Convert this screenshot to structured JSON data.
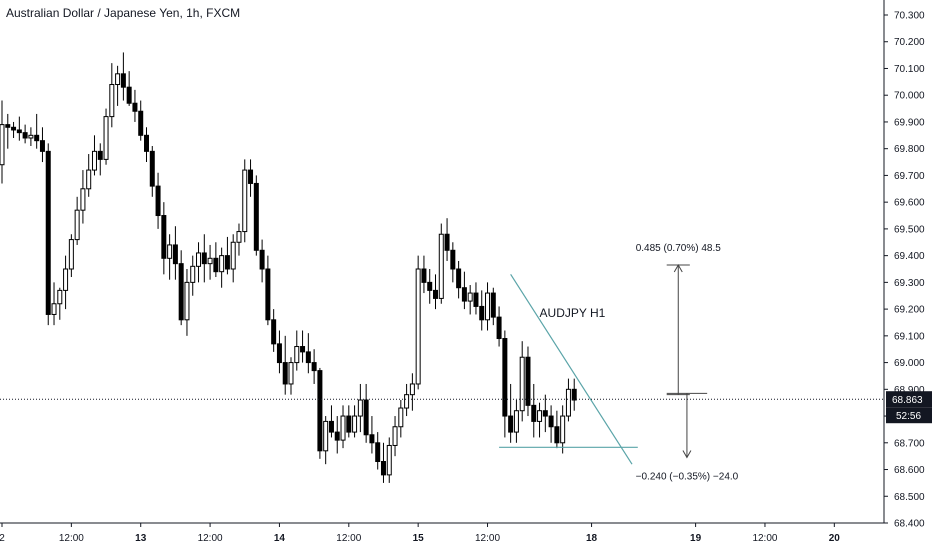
{
  "header": {
    "title": "Australian Dollar / Japanese Yen, 1h, FXCM"
  },
  "chart_data": {
    "type": "candlestick",
    "title": "Australian Dollar / Japanese Yen, 1h, FXCM",
    "ylim": [
      68.4,
      70.35
    ],
    "y_ticks": [
      "70.300",
      "70.200",
      "70.100",
      "70.000",
      "69.900",
      "69.800",
      "69.700",
      "69.600",
      "69.500",
      "69.400",
      "69.300",
      "69.200",
      "69.100",
      "69.000",
      "68.900",
      "68.800",
      "68.700",
      "68.600",
      "68.500",
      "68.400"
    ],
    "x_ticks": [
      {
        "label": "2",
        "i": 0
      },
      {
        "label": "12:00",
        "i": 12
      },
      {
        "label": "13",
        "i": 24,
        "bold": true
      },
      {
        "label": "12:00",
        "i": 36
      },
      {
        "label": "14",
        "i": 48,
        "bold": true
      },
      {
        "label": "12:00",
        "i": 60
      },
      {
        "label": "15",
        "i": 72,
        "bold": true
      },
      {
        "label": "12:00",
        "i": 84
      },
      {
        "label": "18",
        "i": 102,
        "bold": true
      },
      {
        "label": "19",
        "i": 120,
        "bold": true
      },
      {
        "label": "12:00",
        "i": 132
      },
      {
        "label": "20",
        "i": 144,
        "bold": true
      }
    ],
    "current_price": "68.863",
    "countdown": "52:56",
    "last_close": 68.863,
    "candles": [
      [
        69.74,
        69.98,
        69.67,
        69.89
      ],
      [
        69.89,
        69.93,
        69.8,
        69.88
      ],
      [
        69.88,
        69.9,
        69.84,
        69.87
      ],
      [
        69.87,
        69.92,
        69.83,
        69.86
      ],
      [
        69.86,
        69.89,
        69.82,
        69.84
      ],
      [
        69.84,
        69.88,
        69.81,
        69.85
      ],
      [
        69.85,
        69.93,
        69.8,
        69.83
      ],
      [
        69.83,
        69.88,
        69.75,
        69.79
      ],
      [
        69.79,
        69.82,
        69.14,
        69.18
      ],
      [
        69.18,
        69.3,
        69.14,
        69.22
      ],
      [
        69.22,
        69.28,
        69.16,
        69.27
      ],
      [
        69.27,
        69.4,
        69.2,
        69.35
      ],
      [
        69.35,
        69.48,
        69.32,
        69.46
      ],
      [
        69.46,
        69.62,
        69.44,
        69.57
      ],
      [
        69.57,
        69.72,
        69.52,
        69.65
      ],
      [
        69.65,
        69.78,
        69.62,
        69.72
      ],
      [
        69.72,
        69.85,
        69.7,
        69.79
      ],
      [
        69.79,
        69.82,
        69.7,
        69.76
      ],
      [
        69.76,
        69.95,
        69.74,
        69.92
      ],
      [
        69.92,
        70.12,
        69.88,
        70.04
      ],
      [
        70.04,
        70.11,
        69.96,
        70.08
      ],
      [
        70.08,
        70.16,
        69.98,
        70.03
      ],
      [
        70.03,
        70.09,
        69.96,
        69.97
      ],
      [
        69.97,
        70.02,
        69.9,
        69.94
      ],
      [
        69.94,
        69.98,
        69.83,
        69.85
      ],
      [
        69.85,
        69.88,
        69.75,
        69.79
      ],
      [
        69.79,
        69.81,
        69.62,
        69.66
      ],
      [
        69.66,
        69.71,
        69.5,
        69.55
      ],
      [
        69.55,
        69.6,
        69.33,
        69.39
      ],
      [
        69.39,
        69.48,
        69.31,
        69.44
      ],
      [
        69.44,
        69.51,
        69.31,
        69.37
      ],
      [
        69.37,
        69.42,
        69.14,
        69.16
      ],
      [
        69.16,
        69.35,
        69.1,
        69.3
      ],
      [
        69.3,
        69.4,
        69.25,
        69.36
      ],
      [
        69.36,
        69.45,
        69.3,
        69.41
      ],
      [
        69.41,
        69.48,
        69.3,
        69.37
      ],
      [
        69.37,
        69.44,
        69.31,
        69.39
      ],
      [
        69.39,
        69.45,
        69.32,
        69.34
      ],
      [
        69.34,
        69.43,
        69.28,
        69.4
      ],
      [
        69.4,
        69.47,
        69.33,
        69.35
      ],
      [
        69.35,
        69.48,
        69.3,
        69.45
      ],
      [
        69.45,
        69.52,
        69.4,
        69.49
      ],
      [
        69.49,
        69.76,
        69.45,
        69.72
      ],
      [
        69.72,
        69.76,
        69.62,
        69.67
      ],
      [
        69.67,
        69.7,
        69.4,
        69.42
      ],
      [
        69.42,
        69.46,
        69.3,
        69.35
      ],
      [
        69.35,
        69.4,
        69.14,
        69.16
      ],
      [
        69.16,
        69.2,
        69.04,
        69.07
      ],
      [
        69.07,
        69.12,
        68.96,
        69.0
      ],
      [
        69.0,
        69.1,
        68.88,
        68.92
      ],
      [
        68.92,
        69.02,
        68.88,
        69.0
      ],
      [
        69.0,
        69.12,
        68.97,
        69.06
      ],
      [
        69.06,
        69.12,
        69.0,
        69.04
      ],
      [
        69.04,
        69.11,
        68.96,
        69.0
      ],
      [
        69.0,
        69.05,
        68.92,
        68.97
      ],
      [
        68.97,
        68.98,
        68.64,
        68.67
      ],
      [
        68.67,
        68.8,
        68.62,
        68.78
      ],
      [
        68.78,
        68.84,
        68.72,
        68.74
      ],
      [
        68.74,
        68.8,
        68.66,
        68.71
      ],
      [
        68.71,
        68.84,
        68.68,
        68.8
      ],
      [
        68.8,
        68.84,
        68.72,
        68.74
      ],
      [
        68.74,
        68.84,
        68.72,
        68.8
      ],
      [
        68.8,
        68.92,
        68.74,
        68.86
      ],
      [
        68.86,
        68.92,
        68.7,
        68.73
      ],
      [
        68.73,
        68.8,
        68.66,
        68.7
      ],
      [
        68.7,
        68.74,
        68.6,
        68.63
      ],
      [
        68.63,
        68.7,
        68.55,
        68.58
      ],
      [
        68.58,
        68.72,
        68.55,
        68.69
      ],
      [
        68.69,
        68.8,
        68.65,
        68.76
      ],
      [
        68.76,
        68.86,
        68.72,
        68.83
      ],
      [
        68.83,
        68.92,
        68.8,
        68.88
      ],
      [
        68.88,
        68.96,
        68.82,
        68.92
      ],
      [
        68.92,
        69.4,
        68.9,
        69.35
      ],
      [
        69.35,
        69.4,
        69.26,
        69.3
      ],
      [
        69.3,
        69.35,
        69.22,
        69.27
      ],
      [
        69.27,
        69.33,
        69.2,
        69.24
      ],
      [
        69.24,
        69.52,
        69.22,
        69.48
      ],
      [
        69.48,
        69.54,
        69.38,
        69.42
      ],
      [
        69.42,
        69.45,
        69.3,
        69.35
      ],
      [
        69.35,
        69.38,
        69.24,
        69.28
      ],
      [
        69.28,
        69.34,
        69.2,
        69.23
      ],
      [
        69.23,
        69.29,
        69.18,
        69.26
      ],
      [
        69.26,
        69.3,
        69.18,
        69.21
      ],
      [
        69.21,
        69.27,
        69.12,
        69.16
      ],
      [
        69.16,
        69.3,
        69.12,
        69.26
      ],
      [
        69.26,
        69.28,
        69.14,
        69.17
      ],
      [
        69.17,
        69.21,
        69.06,
        69.09
      ],
      [
        69.09,
        69.12,
        68.72,
        68.8
      ],
      [
        68.8,
        68.92,
        68.7,
        68.74
      ],
      [
        68.74,
        68.86,
        68.7,
        68.82
      ],
      [
        68.82,
        69.08,
        68.78,
        69.02
      ],
      [
        69.02,
        69.06,
        68.8,
        68.84
      ],
      [
        68.84,
        68.92,
        68.72,
        68.78
      ],
      [
        68.78,
        68.85,
        68.72,
        68.82
      ],
      [
        68.82,
        68.88,
        68.74,
        68.8
      ],
      [
        68.8,
        68.84,
        68.7,
        68.76
      ],
      [
        68.76,
        68.82,
        68.68,
        68.7
      ],
      [
        68.7,
        68.84,
        68.66,
        68.8
      ],
      [
        68.8,
        68.94,
        68.78,
        68.9
      ],
      [
        68.9,
        68.94,
        68.82,
        68.86
      ]
    ],
    "annotations": {
      "label": "AUDJPY H1",
      "up_measure": "0.485 (0.70%) 48.5",
      "down_measure": "−0.240 (−0.35%) −24.0"
    }
  }
}
